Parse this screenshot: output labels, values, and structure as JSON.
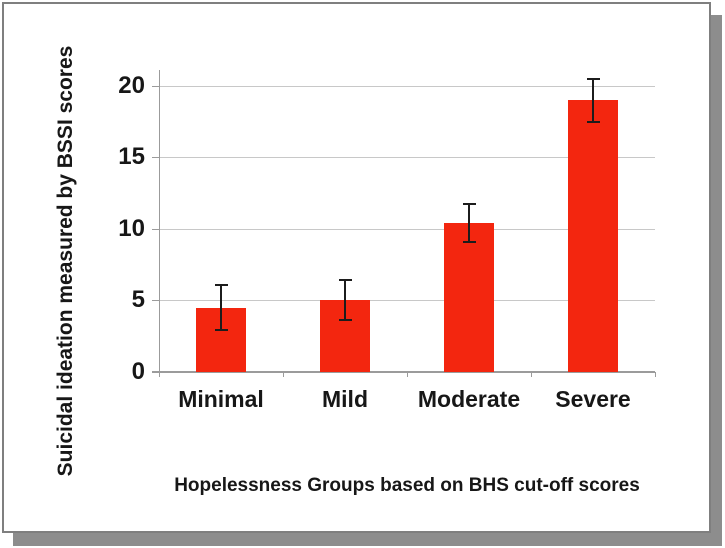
{
  "frame": {
    "background": "#ffffff",
    "border_color": "#7f7f7f",
    "shadow_color": "#8d8d8d"
  },
  "chart_data": {
    "type": "bar",
    "title": "",
    "xlabel": "Hopelessness Groups based on BHS cut-off scores",
    "ylabel": "Suicidal ideation measured by BSSI scores",
    "categories": [
      "Minimal",
      "Mild",
      "Moderate",
      "Severe"
    ],
    "values": [
      4.5,
      5.0,
      10.4,
      19.0
    ],
    "error_bars": [
      1.55,
      1.4,
      1.35,
      1.5
    ],
    "yticks": [
      0,
      5,
      10,
      15,
      20
    ],
    "ylim": [
      0,
      21.1
    ],
    "grid": true,
    "legend_position": "none",
    "bar_color": "#f3260f",
    "error_bar_color": "#1c1c1c",
    "gridline_color": "#c8c8c8",
    "axis_color": "#9b9b9b",
    "text_color": "#171717"
  }
}
